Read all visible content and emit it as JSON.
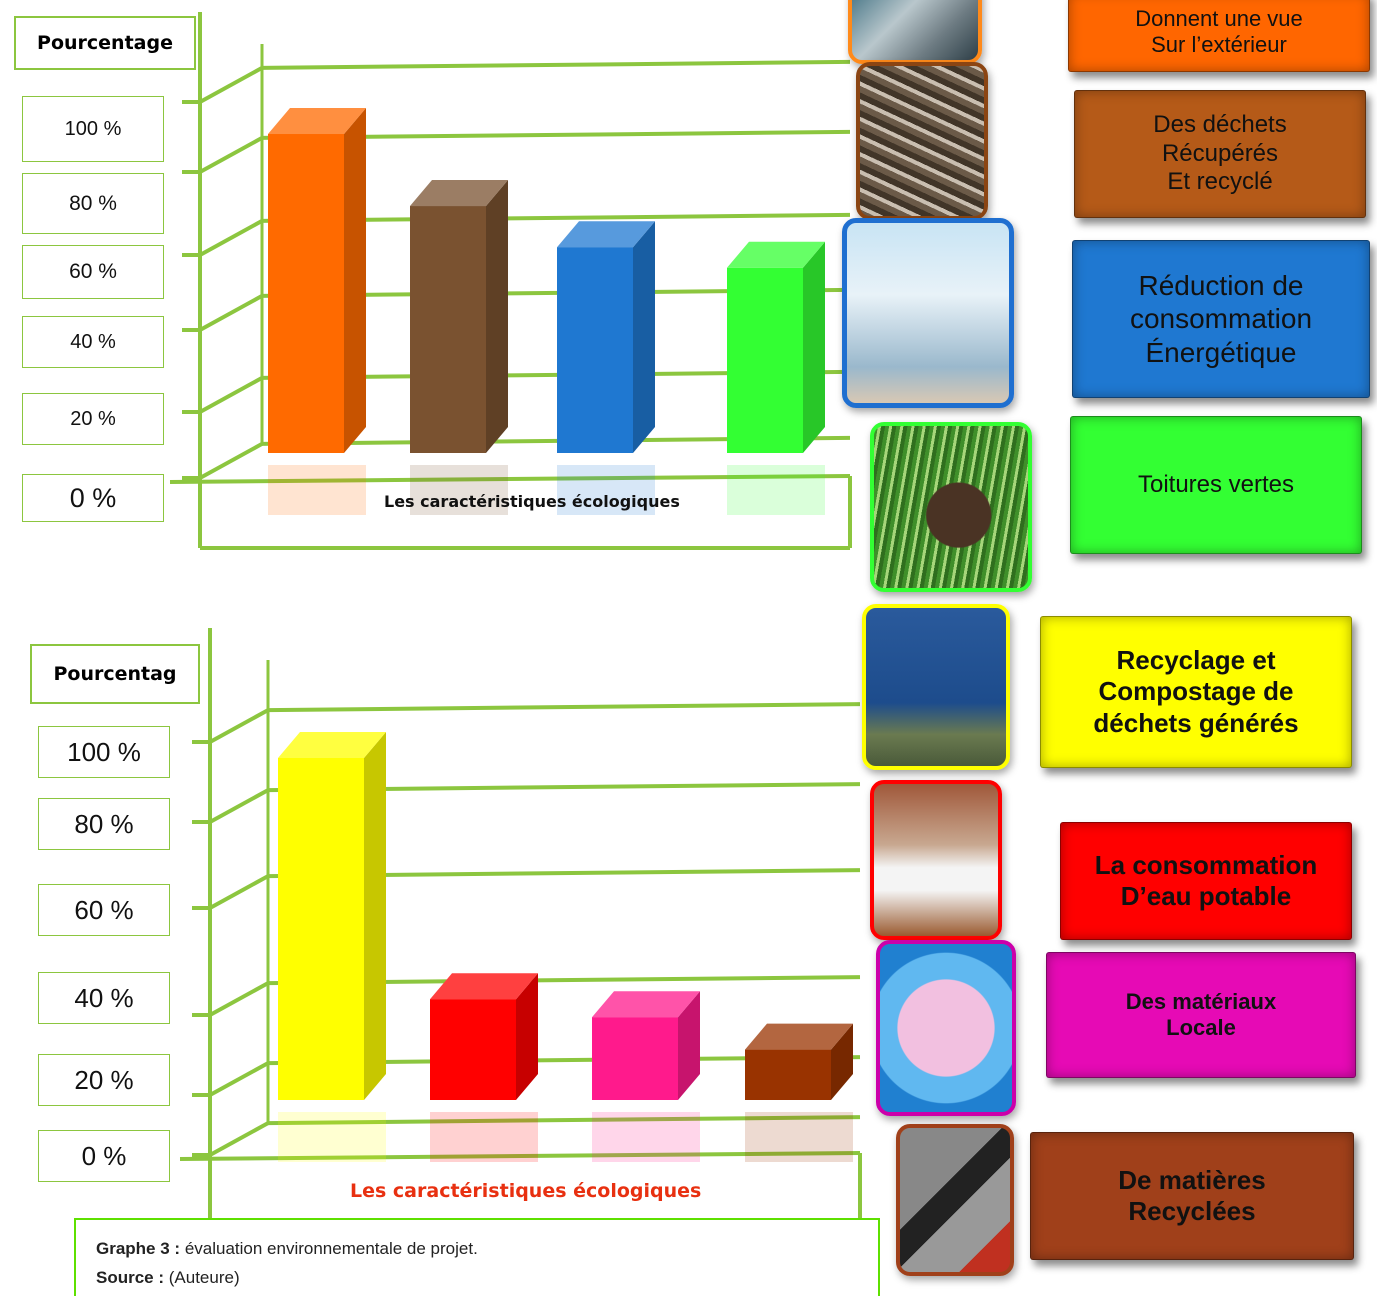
{
  "chart_data": [
    {
      "type": "bar",
      "ylabel": "Pourcentage",
      "xlabel": "Les caractéristiques écologiques",
      "y_ticks": [
        "100 %",
        "80 %",
        "60 %",
        "40 %",
        "20 %",
        "0 %"
      ],
      "ylim": [
        0,
        100
      ],
      "categories": [
        "Donnent une vue\nSur l’extérieur",
        "Des déchets\nRécupérés\nEt recyclé",
        "Réduction de\nconsommation\nÉnergétique",
        "Toitures vertes"
      ],
      "values": [
        93,
        72,
        60,
        54
      ],
      "colors": [
        "#ff6a00",
        "#7a5230",
        "#1f78d1",
        "#33ff33"
      ],
      "legend_colors": [
        "#ff6600",
        "#b55a18",
        "#1f78d1",
        "#33ff33"
      ],
      "photos": [
        "window-view-photo",
        "wood-debris-photo",
        "glass-building-photo",
        "grass-soil-photo"
      ],
      "photo_borders": [
        "#ff8a1a",
        "#8b4513",
        "#1f6fd0",
        "#33ff33"
      ],
      "grid": true
    },
    {
      "type": "bar",
      "ylabel": "Pourcentag",
      "xlabel": "Les caractéristiques écologiques",
      "y_ticks": [
        "100 %",
        "80 %",
        "60 %",
        "40 %",
        "20 %",
        "0 %"
      ],
      "ylim": [
        0,
        100
      ],
      "categories": [
        "Recyclage et\nCompostage de\ndéchets générés",
        "La consommation\nD’eau potable",
        "Des matériaux\nLocale",
        "De matières\nRecyclées"
      ],
      "values": [
        95,
        28,
        23,
        14
      ],
      "colors": [
        "#ffff00",
        "#ff0000",
        "#ff1a8c",
        "#993300"
      ],
      "legend_colors": [
        "#ffff00",
        "#ff0000",
        "#e60ab5",
        "#a0401a"
      ],
      "photos": [
        "blue-container-photo",
        "washbasin-photo",
        "pink-map-photo",
        "asphalt-photo"
      ],
      "photo_borders": [
        "#ffff00",
        "#ff0000",
        "#cc00aa",
        "#a0401a"
      ],
      "grid": true
    }
  ],
  "caption": {
    "graph_label": "Graphe  3 :",
    "graph_text": " évaluation environnementale  de projet.",
    "source_label": "Source :",
    "source_text": " (Auteure)"
  },
  "colors": {
    "frame": "#8cc63f",
    "xlabel2": "#e83010"
  }
}
